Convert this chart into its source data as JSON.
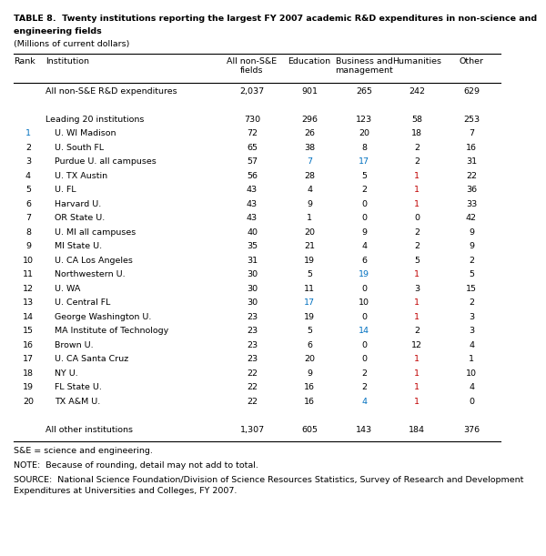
{
  "title_line1": "TABLE 8.  Twenty institutions reporting the largest FY 2007 academic R&D expenditures in non-science and",
  "title_line2": "engineering fields",
  "subtitle": "(Millions of current dollars)",
  "footnote1": "S&E = science and engineering.",
  "footnote2": "NOTE:  Because of rounding, detail may not add to total.",
  "footnote3": "SOURCE:  National Science Foundation/Division of Science Resources Statistics, Survey of Research and Development\nExpenditures at Universities and Colleges, FY 2007.",
  "rows": [
    {
      "rank": "",
      "institution": "All non-S&E R&D expenditures",
      "vals": [
        "2,037",
        "901",
        "265",
        "242",
        "629"
      ],
      "indent": false,
      "rank_color": "black",
      "val_colors": [
        "black",
        "black",
        "black",
        "black",
        "black"
      ]
    },
    {
      "rank": "",
      "institution": "",
      "vals": [
        "",
        "",
        "",
        "",
        ""
      ],
      "indent": false,
      "rank_color": "black",
      "val_colors": [
        "black",
        "black",
        "black",
        "black",
        "black"
      ]
    },
    {
      "rank": "",
      "institution": "Leading 20 institutions",
      "vals": [
        "730",
        "296",
        "123",
        "58",
        "253"
      ],
      "indent": false,
      "rank_color": "black",
      "val_colors": [
        "black",
        "black",
        "black",
        "black",
        "black"
      ]
    },
    {
      "rank": "1",
      "institution": "U. WI Madison",
      "vals": [
        "72",
        "26",
        "20",
        "18",
        "7"
      ],
      "indent": true,
      "rank_color": "#0070C0",
      "val_colors": [
        "black",
        "black",
        "black",
        "black",
        "black"
      ]
    },
    {
      "rank": "2",
      "institution": "U. South FL",
      "vals": [
        "65",
        "38",
        "8",
        "2",
        "16"
      ],
      "indent": true,
      "rank_color": "black",
      "val_colors": [
        "black",
        "black",
        "black",
        "black",
        "black"
      ]
    },
    {
      "rank": "3",
      "institution": "Purdue U. all campuses",
      "vals": [
        "57",
        "7",
        "17",
        "2",
        "31"
      ],
      "indent": true,
      "rank_color": "black",
      "val_colors": [
        "black",
        "#0070C0",
        "#0070C0",
        "black",
        "black"
      ]
    },
    {
      "rank": "4",
      "institution": "U. TX Austin",
      "vals": [
        "56",
        "28",
        "5",
        "1",
        "22"
      ],
      "indent": true,
      "rank_color": "black",
      "val_colors": [
        "black",
        "black",
        "black",
        "#C00000",
        "black"
      ]
    },
    {
      "rank": "5",
      "institution": "U. FL",
      "vals": [
        "43",
        "4",
        "2",
        "1",
        "36"
      ],
      "indent": true,
      "rank_color": "black",
      "val_colors": [
        "black",
        "black",
        "black",
        "#C00000",
        "black"
      ]
    },
    {
      "rank": "6",
      "institution": "Harvard U.",
      "vals": [
        "43",
        "9",
        "0",
        "1",
        "33"
      ],
      "indent": true,
      "rank_color": "black",
      "val_colors": [
        "black",
        "black",
        "black",
        "#C00000",
        "black"
      ]
    },
    {
      "rank": "7",
      "institution": "OR State U.",
      "vals": [
        "43",
        "1",
        "0",
        "0",
        "42"
      ],
      "indent": true,
      "rank_color": "black",
      "val_colors": [
        "black",
        "black",
        "black",
        "black",
        "black"
      ]
    },
    {
      "rank": "8",
      "institution": "U. MI all campuses",
      "vals": [
        "40",
        "20",
        "9",
        "2",
        "9"
      ],
      "indent": true,
      "rank_color": "black",
      "val_colors": [
        "black",
        "black",
        "black",
        "black",
        "black"
      ]
    },
    {
      "rank": "9",
      "institution": "MI State U.",
      "vals": [
        "35",
        "21",
        "4",
        "2",
        "9"
      ],
      "indent": true,
      "rank_color": "black",
      "val_colors": [
        "black",
        "black",
        "black",
        "black",
        "black"
      ]
    },
    {
      "rank": "10",
      "institution": "U. CA Los Angeles",
      "vals": [
        "31",
        "19",
        "6",
        "5",
        "2"
      ],
      "indent": true,
      "rank_color": "black",
      "val_colors": [
        "black",
        "black",
        "black",
        "black",
        "black"
      ]
    },
    {
      "rank": "11",
      "institution": "Northwestern U.",
      "vals": [
        "30",
        "5",
        "19",
        "1",
        "5"
      ],
      "indent": true,
      "rank_color": "black",
      "val_colors": [
        "black",
        "black",
        "#0070C0",
        "#C00000",
        "black"
      ]
    },
    {
      "rank": "12",
      "institution": "U. WA",
      "vals": [
        "30",
        "11",
        "0",
        "3",
        "15"
      ],
      "indent": true,
      "rank_color": "black",
      "val_colors": [
        "black",
        "black",
        "black",
        "black",
        "black"
      ]
    },
    {
      "rank": "13",
      "institution": "U. Central FL",
      "vals": [
        "30",
        "17",
        "10",
        "1",
        "2"
      ],
      "indent": true,
      "rank_color": "black",
      "val_colors": [
        "black",
        "#0070C0",
        "black",
        "#C00000",
        "black"
      ]
    },
    {
      "rank": "14",
      "institution": "George Washington U.",
      "vals": [
        "23",
        "19",
        "0",
        "1",
        "3"
      ],
      "indent": true,
      "rank_color": "black",
      "val_colors": [
        "black",
        "black",
        "black",
        "#C00000",
        "black"
      ]
    },
    {
      "rank": "15",
      "institution": "MA Institute of Technology",
      "vals": [
        "23",
        "5",
        "14",
        "2",
        "3"
      ],
      "indent": true,
      "rank_color": "black",
      "val_colors": [
        "black",
        "black",
        "#0070C0",
        "black",
        "black"
      ]
    },
    {
      "rank": "16",
      "institution": "Brown U.",
      "vals": [
        "23",
        "6",
        "0",
        "12",
        "4"
      ],
      "indent": true,
      "rank_color": "black",
      "val_colors": [
        "black",
        "black",
        "black",
        "black",
        "black"
      ]
    },
    {
      "rank": "17",
      "institution": "U. CA Santa Cruz",
      "vals": [
        "23",
        "20",
        "0",
        "1",
        "1"
      ],
      "indent": true,
      "rank_color": "black",
      "val_colors": [
        "black",
        "black",
        "black",
        "#C00000",
        "black"
      ]
    },
    {
      "rank": "18",
      "institution": "NY U.",
      "vals": [
        "22",
        "9",
        "2",
        "1",
        "10"
      ],
      "indent": true,
      "rank_color": "black",
      "val_colors": [
        "black",
        "black",
        "black",
        "#C00000",
        "black"
      ]
    },
    {
      "rank": "19",
      "institution": "FL State U.",
      "vals": [
        "22",
        "16",
        "2",
        "1",
        "4"
      ],
      "indent": true,
      "rank_color": "black",
      "val_colors": [
        "black",
        "black",
        "black",
        "#C00000",
        "black"
      ]
    },
    {
      "rank": "20",
      "institution": "TX A&M U.",
      "vals": [
        "22",
        "16",
        "4",
        "1",
        "0"
      ],
      "indent": true,
      "rank_color": "black",
      "val_colors": [
        "black",
        "black",
        "#0070C0",
        "#C00000",
        "black"
      ]
    },
    {
      "rank": "",
      "institution": "",
      "vals": [
        "",
        "",
        "",
        "",
        ""
      ],
      "indent": false,
      "rank_color": "black",
      "val_colors": [
        "black",
        "black",
        "black",
        "black",
        "black"
      ]
    },
    {
      "rank": "",
      "institution": "All other institutions",
      "vals": [
        "1,307",
        "605",
        "143",
        "184",
        "376"
      ],
      "indent": false,
      "rank_color": "black",
      "val_colors": [
        "black",
        "black",
        "black",
        "black",
        "black"
      ]
    }
  ],
  "bg_color": "white",
  "text_color": "black"
}
